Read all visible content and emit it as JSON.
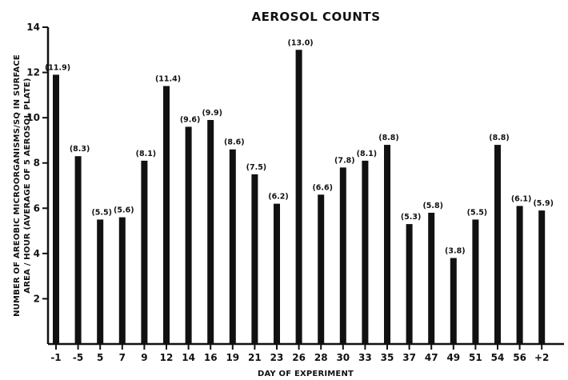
{
  "chart_data": {
    "type": "bar",
    "title": "AEROSOL COUNTS",
    "xlabel": "DAY OF EXPERIMENT",
    "ylabel_lines": [
      "NUMBER OF AREOBIC MICROORGANISMS/SQ IN SURFACE",
      "AREA / HOUR (AVERAGE OF 5 AEROSOL PLATE)"
    ],
    "categories": [
      "-1",
      "-5",
      "5",
      "7",
      "9",
      "12",
      "14",
      "16",
      "19",
      "21",
      "23",
      "26",
      "28",
      "30",
      "33",
      "35",
      "37",
      "47",
      "49",
      "51",
      "54",
      "56",
      "+2"
    ],
    "values": [
      11.9,
      8.3,
      5.5,
      5.6,
      8.1,
      11.4,
      9.6,
      9.9,
      8.6,
      7.5,
      6.2,
      13.0,
      6.6,
      7.8,
      8.1,
      8.8,
      5.3,
      5.8,
      3.8,
      5.5,
      8.8,
      6.1,
      5.9
    ],
    "data_labels": [
      "(11.9)",
      "(8.3)",
      "(5.5)",
      "(5.6)",
      "(8.1)",
      "(11.4)",
      "(9.6)",
      "(9.9)",
      "(8.6)",
      "(7.5)",
      "(6.2)",
      "(13.0)",
      "(6.6)",
      "(7.8)",
      "(8.1)",
      "(8.8)",
      "(5.3)",
      "(5.8)",
      "(3.8)",
      "(5.5)",
      "(8.8)",
      "(6.1)",
      "(5.9)"
    ],
    "yticks": [
      "2",
      "4",
      "6",
      "8",
      "10",
      "12",
      "14"
    ],
    "ylim": [
      0,
      14
    ],
    "grid": false,
    "bar_color": "#111111"
  }
}
